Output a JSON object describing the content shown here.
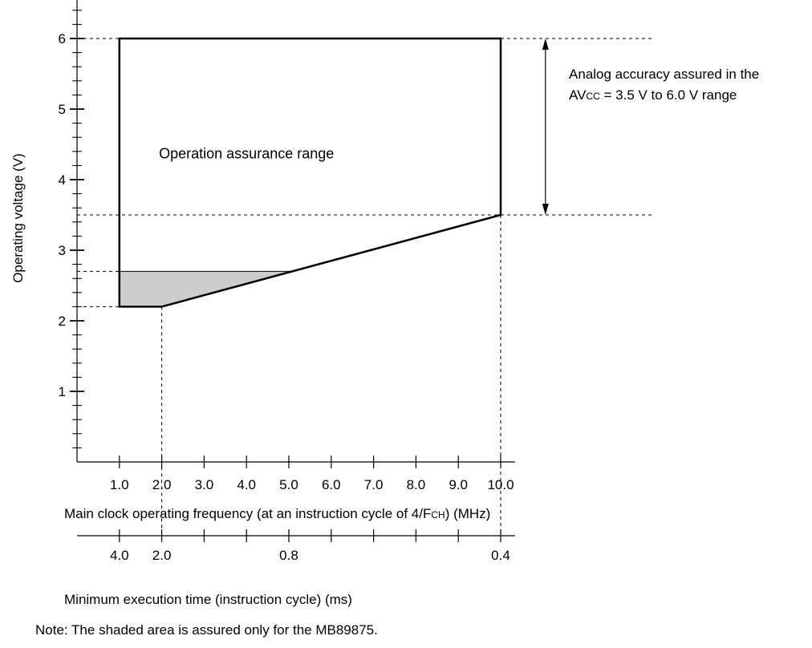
{
  "chart_data": {
    "type": "area",
    "y_axis": {
      "label": "Operating voltage (V)",
      "min": 0,
      "max": 6.5,
      "major_ticks": [
        1,
        2,
        3,
        4,
        5,
        6
      ],
      "minor_step": 0.2
    },
    "x_axis": {
      "label_prefix": "Main clock operating frequency (at an instruction cycle of 4/F",
      "label_sub": "CH",
      "label_suffix": ") (MHz)",
      "ticks": [
        "1.0",
        "2.0",
        "3.0",
        "4.0",
        "5.0",
        "6.0",
        "7.0",
        "8.0",
        "9.0",
        "10.0"
      ],
      "min": 0,
      "max": 10.3
    },
    "x_axis2": {
      "label": "Minimum execution time (instruction cycle) (ms)",
      "tick_positions_mhz": [
        1,
        2,
        3,
        4,
        5,
        6,
        7,
        8,
        9,
        10
      ],
      "labels": [
        {
          "at_mhz": 1,
          "text": "4.0"
        },
        {
          "at_mhz": 2,
          "text": "2.0"
        },
        {
          "at_mhz": 5,
          "text": "0.8"
        },
        {
          "at_mhz": 10,
          "text": "0.4"
        }
      ]
    },
    "regions": [
      {
        "name": "Operation assurance range",
        "points": [
          [
            1,
            6
          ],
          [
            10,
            6
          ],
          [
            10,
            3.5
          ],
          [
            2,
            2.2
          ],
          [
            1,
            2.2
          ]
        ],
        "fill": "#ffffff",
        "label_at": [
          4,
          4.3
        ]
      },
      {
        "name": "shaded",
        "points": [
          [
            1,
            2.7
          ],
          [
            5.04,
            2.7
          ],
          [
            2,
            2.2
          ],
          [
            1,
            2.2
          ]
        ],
        "fill": "#cccccc"
      }
    ],
    "reference_lines": {
      "horizontal_v": [
        6,
        3.5,
        2.7,
        2.2
      ],
      "vertical_mhz": [
        2,
        10
      ]
    },
    "annotation": {
      "from_v": 3.5,
      "to_v": 6,
      "at_mhz": 11,
      "line1": "Analog accuracy assured in the",
      "line2_prefix": "AV",
      "line2_sub": "CC",
      "line2_suffix": " = 3.5 V to 6.0 V range"
    },
    "note": "Note: The shaded area is assured only for the MB89875."
  }
}
